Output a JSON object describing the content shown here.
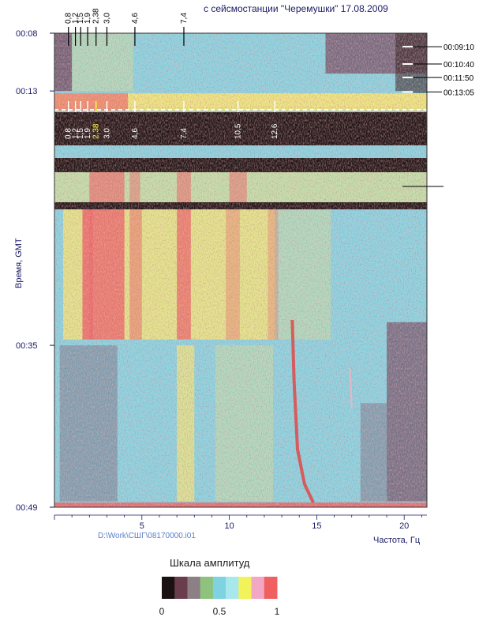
{
  "chart_data": {
    "type": "heatmap",
    "title": "с сейсмостанции \"Черемушки\" 17.08.2009",
    "ylabel": "Время, GMT",
    "xlabel": "Частота, Гц",
    "x_ticks": [
      "5",
      "10",
      "15",
      "20"
    ],
    "x_tick_values": [
      5,
      10,
      15,
      20
    ],
    "xlim": [
      0,
      21.3
    ],
    "y_ticks": [
      "00:08",
      "00:13",
      "00:35",
      "00:49"
    ],
    "y_tick_minutes": [
      8,
      13,
      35,
      49
    ],
    "ylim_minutes": [
      8,
      49
    ],
    "top_frequency_marks": [
      "0,8",
      "1,2",
      "1,5",
      "1,9",
      "2,38",
      "3,0",
      "4,6",
      "7,4"
    ],
    "top_frequency_values": [
      0.8,
      1.2,
      1.5,
      1.9,
      2.38,
      3.0,
      4.6,
      7.4
    ],
    "band_frequency_marks": [
      "0,8",
      "1,2",
      "1,5",
      "1,9",
      "2,38",
      "3,0",
      "4,6",
      "7,4",
      "10,5",
      "12,6"
    ],
    "band_frequency_values": [
      0.8,
      1.2,
      1.5,
      1.9,
      2.38,
      3.0,
      4.6,
      7.4,
      10.5,
      12.6
    ],
    "highlighted_mark": "2,38",
    "time_marks": [
      "00:09:10",
      "00:10:40",
      "00:11:50",
      "00:13:05"
    ],
    "time_mark_minutes": [
      9.1667,
      10.6667,
      11.8333,
      13.0833
    ],
    "file_label": "D:\\Work\\СШГ\\08170000.i01",
    "color_scale": {
      "title": "Шкала амплитуд",
      "labels": [
        "0",
        "0.5",
        "1"
      ],
      "colors": [
        "#1a1210",
        "#6a3d4c",
        "#8d7f86",
        "#8ec37d",
        "#7fd2df",
        "#a8e8ec",
        "#f2f25a",
        "#f2a8c4",
        "#f06060"
      ]
    },
    "palette": {
      "cyan": "#86d8e6",
      "yellow": "#f3ec7a",
      "red": "#ec6868",
      "dark": "#2a1a1a",
      "purple": "#6c3e56"
    }
  }
}
